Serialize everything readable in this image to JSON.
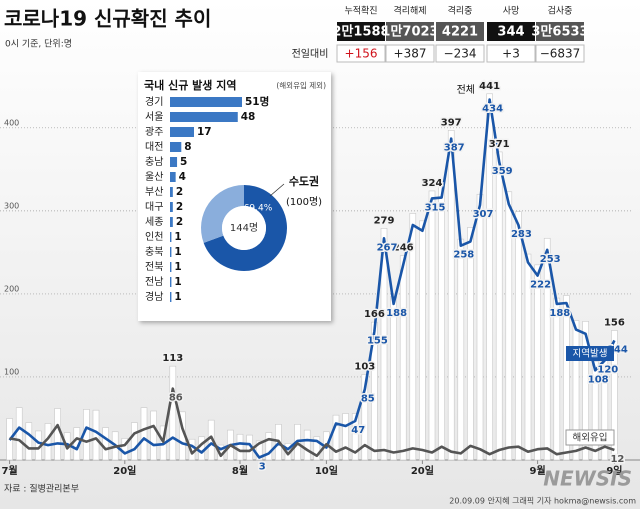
{
  "header": {
    "title": "코로나19 신규확진 추이",
    "subtitle": "0시 기준, 단위:명"
  },
  "stats": {
    "columns": [
      "누적확진",
      "격리해제",
      "격리중",
      "사망",
      "검사중"
    ],
    "totals": [
      "2만1588",
      "1만7023",
      "4221",
      "344",
      "3만6533"
    ],
    "change_label": "전일대비",
    "changes": [
      "+156",
      "+387",
      "−234",
      "+3",
      "−6837"
    ]
  },
  "chart_data": [
    {
      "type": "bar",
      "categories": [
        "7월",
        null,
        null,
        null,
        null,
        null,
        null,
        null,
        null,
        null,
        null,
        null,
        "20일",
        null,
        null,
        null,
        null,
        null,
        null,
        null,
        null,
        null,
        null,
        null,
        "8월",
        null,
        null,
        null,
        null,
        null,
        null,
        null,
        null,
        "10일",
        null,
        null,
        null,
        null,
        null,
        null,
        null,
        null,
        null,
        "20일",
        null,
        null,
        null,
        null,
        null,
        null,
        null,
        null,
        null,
        null,
        null,
        "9월",
        null,
        null,
        null,
        null,
        null,
        null,
        null,
        "9일"
      ],
      "ylim": [
        0,
        460
      ],
      "yticks": [
        100,
        200,
        300,
        400
      ],
      "grid": true,
      "series": [
        {
          "name": "전체",
          "type": "bar",
          "color": "#ffffff",
          "values": [
            50,
            63,
            45,
            35,
            44,
            62,
            33,
            39,
            61,
            60,
            39,
            34,
            26,
            45,
            63,
            59,
            41,
            113,
            58,
            25,
            28,
            48,
            18,
            36,
            31,
            30,
            23,
            33,
            43,
            20,
            43,
            36,
            28,
            34,
            54,
            56,
            56,
            103,
            166,
            279,
            197,
            246,
            297,
            288,
            324,
            332,
            397,
            266,
            280,
            320,
            441,
            371,
            323,
            299,
            248,
            235,
            267,
            195,
            198,
            168,
            167,
            119,
            136,
            156
          ]
        },
        {
          "name": "지역발생",
          "type": "line",
          "color": "#1a56a8",
          "values": [
            24,
            39,
            31,
            21,
            18,
            20,
            19,
            13,
            39,
            34,
            26,
            18,
            8,
            13,
            26,
            18,
            19,
            27,
            20,
            17,
            9,
            20,
            13,
            18,
            20,
            19,
            3,
            8,
            20,
            13,
            23,
            24,
            23,
            15,
            44,
            41,
            47,
            85,
            155,
            267,
            188,
            235,
            283,
            276,
            315,
            316,
            387,
            258,
            263,
            307,
            434,
            359,
            308,
            283,
            238,
            222,
            253,
            188,
            189,
            157,
            152,
            108,
            120,
            144
          ]
        },
        {
          "name": "해외유입",
          "type": "line",
          "color": "#555555",
          "values": [
            26,
            24,
            14,
            14,
            26,
            42,
            14,
            26,
            22,
            26,
            13,
            16,
            18,
            32,
            37,
            41,
            22,
            86,
            38,
            8,
            19,
            28,
            5,
            18,
            11,
            11,
            20,
            25,
            23,
            7,
            20,
            12,
            5,
            19,
            10,
            15,
            9,
            18,
            11,
            12,
            9,
            11,
            14,
            12,
            9,
            16,
            10,
            8,
            17,
            13,
            7,
            12,
            15,
            16,
            10,
            13,
            14,
            7,
            9,
            11,
            15,
            11,
            16,
            12
          ]
        }
      ]
    },
    {
      "type": "hbar",
      "title": "국내 신규 발생 지역",
      "subtitle": "(해외유입 제외)",
      "color": "#3b78c4",
      "categories": [
        "경기",
        "서울",
        "광주",
        "대전",
        "충남",
        "울산",
        "부산",
        "대구",
        "세종",
        "인천",
        "충북",
        "전북",
        "전남",
        "경남"
      ],
      "values": [
        51,
        48,
        17,
        8,
        5,
        4,
        2,
        2,
        2,
        1,
        1,
        1,
        1,
        1
      ],
      "value_labels": [
        "51명",
        "48",
        "17",
        "8",
        "5",
        "4",
        "2",
        "2",
        "2",
        "1",
        "1",
        "1",
        "1",
        "1"
      ]
    },
    {
      "type": "pie",
      "categories": [
        "수도권",
        null
      ],
      "values": [
        69.4,
        30.6
      ],
      "value_labels": [
        "69.4%",
        null
      ],
      "colors": [
        "#1a56a8",
        "#8aaedc"
      ],
      "center_label": "144명",
      "annotation": "(100명)"
    }
  ],
  "footer": {
    "source": "자료 : 질병관리본부",
    "credit": "20.09.09 안지혜 그래픽 기자  hokma@newsis.com",
    "logo": "NEWSIS"
  }
}
